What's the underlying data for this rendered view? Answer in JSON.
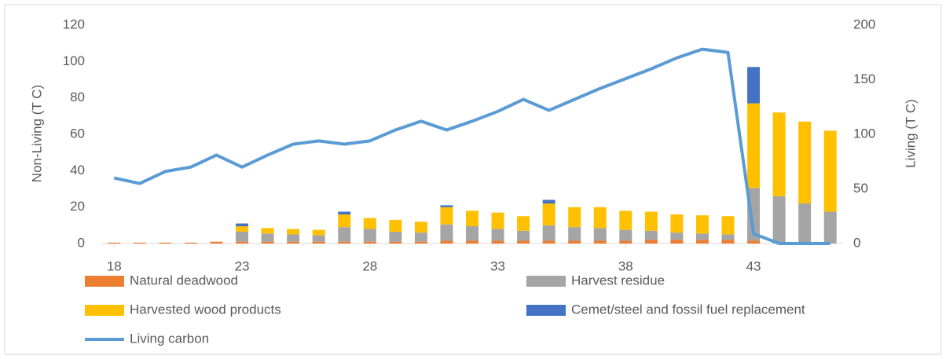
{
  "chart_data": {
    "type": "bar",
    "stacked": true,
    "x": [
      18,
      19,
      20,
      21,
      22,
      23,
      24,
      25,
      26,
      27,
      28,
      29,
      30,
      31,
      32,
      33,
      34,
      35,
      36,
      37,
      38,
      39,
      40,
      41,
      42,
      43,
      44,
      45,
      46
    ],
    "xlim": [
      17.5,
      46.5
    ],
    "xticks": [
      18,
      23,
      28,
      33,
      38,
      43
    ],
    "ylim": [
      0,
      120
    ],
    "yticks": [
      0,
      20,
      40,
      60,
      80,
      100,
      120
    ],
    "y2lim": [
      0,
      200
    ],
    "y2ticks": [
      0,
      50,
      100,
      150,
      200
    ],
    "ylabel": "Non-Living (T C)",
    "y2label": "Living (T C)",
    "grid": false,
    "series": [
      {
        "name": "Natural deadwood",
        "color": "#ed7d31",
        "values": [
          0.5,
          0.5,
          0.5,
          0.5,
          1,
          1,
          1,
          1,
          1,
          1,
          1,
          1,
          1,
          1.5,
          1.5,
          1.5,
          1.5,
          1.5,
          1.5,
          1.5,
          1.5,
          2,
          2,
          2,
          2,
          1.5,
          0,
          0,
          0
        ]
      },
      {
        "name": "Harvest residue",
        "color": "#a5a5a5",
        "values": [
          0,
          0,
          0,
          0,
          0,
          5.5,
          4.5,
          4,
          3.5,
          8,
          7,
          5.5,
          5,
          9,
          8,
          6.5,
          5.5,
          8.5,
          7.5,
          7,
          6,
          5,
          4,
          3.5,
          3,
          29,
          26,
          22,
          17.5
        ]
      },
      {
        "name": "Harvested wood products",
        "color": "#ffc000",
        "values": [
          0,
          0,
          0,
          0,
          0,
          3,
          3,
          3,
          3,
          7,
          6,
          6.5,
          6,
          9.5,
          8.5,
          9,
          8,
          12,
          11,
          11.5,
          10.5,
          10.5,
          10,
          10,
          10,
          46.5,
          46,
          45,
          44.5
        ]
      },
      {
        "name": "Cemet/steel and fossil fuel replacement",
        "color": "#4472c4",
        "values": [
          0,
          0,
          0,
          0,
          0,
          1.5,
          0,
          0,
          0,
          1.5,
          0,
          0,
          0,
          1,
          0,
          0,
          0,
          2,
          0,
          0,
          0,
          0,
          0,
          0,
          0,
          20,
          0,
          0,
          0
        ]
      },
      {
        "name": "Living carbon",
        "color": "#5b9bd5",
        "type": "line",
        "axis": "y2",
        "values": [
          60,
          55,
          66,
          70,
          81,
          70,
          81,
          91,
          94,
          91,
          94,
          104,
          112,
          104,
          112,
          121,
          132,
          122,
          132,
          142,
          151,
          160,
          170,
          178,
          175,
          9,
          0,
          0,
          0
        ]
      }
    ]
  }
}
